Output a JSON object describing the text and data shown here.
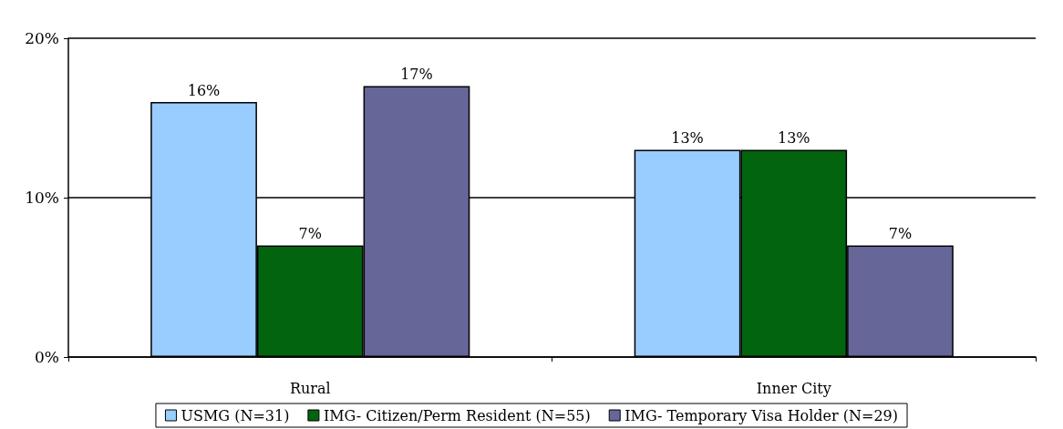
{
  "chart_data": {
    "type": "bar",
    "categories": [
      "Rural",
      "Inner City"
    ],
    "series": [
      {
        "name": "USMG (N=31)",
        "color": "#99ccff",
        "values": [
          16,
          13
        ],
        "value_labels": [
          "16%",
          "13%"
        ]
      },
      {
        "name": "IMG- Citizen/Perm Resident (N=55)",
        "color": "#03640f",
        "values": [
          7,
          13
        ],
        "value_labels": [
          "7%",
          "13%"
        ]
      },
      {
        "name": "IMG- Temporary Visa Holder (N=29)",
        "color": "#666699",
        "values": [
          17,
          7
        ],
        "value_labels": [
          "17%",
          "7%"
        ]
      }
    ],
    "ylim": [
      0,
      20
    ],
    "yticks": [
      {
        "value": 0,
        "label": "0%"
      },
      {
        "value": 10,
        "label": "10%"
      },
      {
        "value": 20,
        "label": "20%"
      }
    ],
    "grid": "y",
    "legend": "bottom"
  }
}
